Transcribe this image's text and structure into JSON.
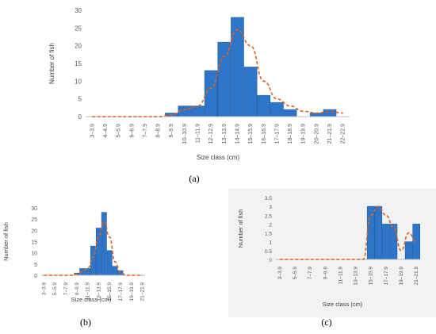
{
  "chart_data": [
    {
      "panel_label": "(a)",
      "type": "bar",
      "title": "",
      "xlabel": "Size class (cm)",
      "ylabel": "Number of fish",
      "ylim": [
        0,
        30
      ],
      "yticks": [
        0,
        5,
        10,
        15,
        20,
        25,
        30
      ],
      "categories": [
        "3–3.9",
        "4–4.9",
        "5–5.9",
        "6–6.9",
        "7–7.9",
        "8–8.9",
        "9–9.9",
        "10–10.9",
        "11–11.9",
        "12–12.9",
        "13–13.9",
        "14–14.9",
        "15–15.9",
        "16–16.9",
        "17–17.9",
        "18–18.9",
        "19–19.9",
        "20–20.9",
        "21–21.9",
        "22–22.9"
      ],
      "values": [
        0,
        0,
        0,
        0,
        0,
        0,
        1,
        3,
        3,
        13,
        21,
        28,
        14,
        6,
        4,
        2,
        0,
        1,
        2,
        0
      ],
      "trendline": [
        0,
        0,
        0,
        0,
        0,
        0,
        0.5,
        2,
        3,
        8,
        17,
        24.5,
        20,
        10,
        5,
        3,
        1.5,
        1,
        1.5,
        1
      ],
      "colors": {
        "bar": "#2e75c7",
        "trendline": "#e0621f"
      },
      "grid": false,
      "legend": "none"
    },
    {
      "panel_label": "(b)",
      "type": "bar",
      "title": "",
      "xlabel": "Size class (cm)",
      "ylabel": "Number of fish",
      "ylim": [
        0,
        30
      ],
      "yticks": [
        0,
        5,
        10,
        15,
        20,
        25,
        30
      ],
      "categories": [
        "3–3.9",
        "4–4.9",
        "5–5.9",
        "6–6.9",
        "7–7.9",
        "8–8.9",
        "9–9.9",
        "10–10.9",
        "11–11.9",
        "12–12.9",
        "13–13.9",
        "14–14.9",
        "15–15.9",
        "16–16.9",
        "17–17.9",
        "18–18.9",
        "19–19.9",
        "20–20.9",
        "21–21.9"
      ],
      "tick_label_every": 2,
      "values": [
        0,
        0,
        0,
        0,
        0,
        0,
        1,
        3,
        3,
        13,
        21,
        28,
        11,
        4,
        2,
        0,
        0,
        0,
        0
      ],
      "trendline": [
        0,
        0,
        0,
        0,
        0,
        0,
        0.5,
        1.5,
        3,
        8,
        17,
        24,
        17,
        6,
        1.5,
        0,
        0,
        0,
        0
      ],
      "colors": {
        "bar": "#2e75c7",
        "trendline": "#e0621f"
      },
      "grid": false,
      "legend": "none"
    },
    {
      "panel_label": "(c)",
      "type": "bar",
      "title": "",
      "xlabel": "Size class (cm)",
      "ylabel": "Number of fish",
      "ylim": [
        0,
        3.5
      ],
      "yticks": [
        0,
        0.5,
        1,
        1.5,
        2,
        2.5,
        3,
        3.5
      ],
      "categories": [
        "3–3.9",
        "4–4.9",
        "5–5.9",
        "6–6.9",
        "7–7.9",
        "8–8.9",
        "9–9.9",
        "10–10.9",
        "11–11.9",
        "12–12.9",
        "13–13.9",
        "14–14.9",
        "15–15.9",
        "16–16.9",
        "17–17.9",
        "18–18.9",
        "19–19.9",
        "20–20.9",
        "21–21.9"
      ],
      "tick_label_every": 2,
      "values": [
        0,
        0,
        0,
        0,
        0,
        0,
        0,
        0,
        0,
        0,
        0,
        0,
        3,
        3,
        2,
        2,
        0,
        1,
        2
      ],
      "trendline": [
        0,
        0,
        0,
        0,
        0,
        0,
        0,
        0,
        0,
        0,
        0,
        0,
        2.5,
        3,
        2.5,
        1.8,
        0.5,
        1.5,
        1
      ],
      "colors": {
        "bar": "#2e75c7",
        "trendline": "#e0621f"
      },
      "grid": false,
      "legend": "none"
    }
  ]
}
